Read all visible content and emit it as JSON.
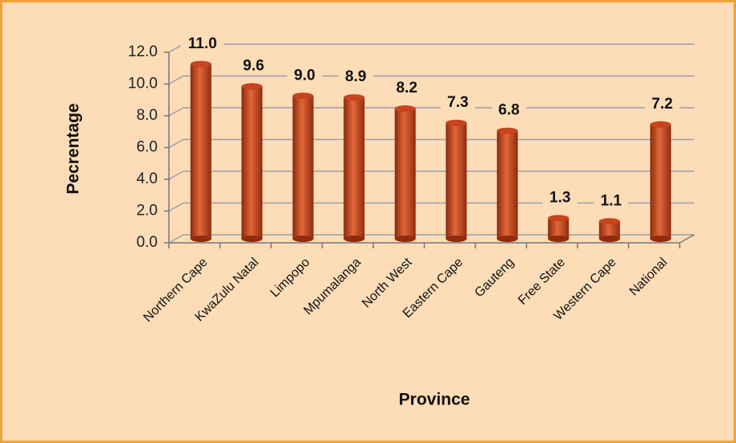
{
  "chart_data": {
    "type": "bar",
    "x_label": "Province",
    "y_label": "Pecrentage",
    "categories": [
      "Northern Cape",
      "KwaZulu Natal",
      "Limpopo",
      "Mpumalanga",
      "North West",
      "Eastern Cape",
      "Gauteng",
      "Free State",
      "Western Cape",
      "National"
    ],
    "values": [
      11.0,
      9.6,
      9.0,
      8.9,
      8.2,
      7.3,
      6.8,
      1.3,
      1.1,
      7.2
    ],
    "value_labels": [
      "11.0",
      "9.6",
      "9.0",
      "8.9",
      "8.2",
      "7.3",
      "6.8",
      "1.3",
      "1.1",
      "7.2"
    ],
    "color": "#c8441c",
    "ylim": [
      0,
      12
    ],
    "yticks": [
      {
        "value": 0,
        "label": "0.0"
      },
      {
        "value": 2,
        "label": "2.0"
      },
      {
        "value": 4,
        "label": "4.0"
      },
      {
        "value": 6,
        "label": "6.0"
      },
      {
        "value": 8,
        "label": "8.0"
      },
      {
        "value": 10,
        "label": "10.0"
      },
      {
        "value": 12,
        "label": "12.0"
      }
    ],
    "grid": true
  }
}
